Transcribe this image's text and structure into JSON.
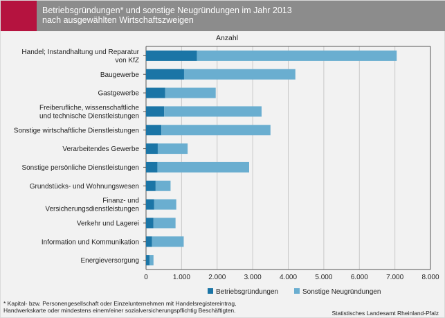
{
  "header": {
    "title": "Betriebsgründungen* und sonstige Neugründungen im Jahr 2013\nnach ausgewählten Wirtschaftszweigen",
    "accent_color": "#b5133f",
    "background_color": "#8c8c8c"
  },
  "chart_data": {
    "type": "bar",
    "orientation": "horizontal",
    "stacked": true,
    "title": "",
    "xlabel": "Anzahl",
    "ylabel": "",
    "xlim": [
      0,
      8000
    ],
    "x_ticks": [
      "0",
      "1.000",
      "2.000",
      "3.000",
      "4.000",
      "5.000",
      "6.000",
      "7.000",
      "8.000"
    ],
    "grid": true,
    "legend_position": "bottom",
    "categories": [
      [
        "Handel; Instandhaltung und Reparatur",
        "von KfZ"
      ],
      [
        "Baugewerbe"
      ],
      [
        "Gastgewerbe"
      ],
      [
        "Freiberufliche, wissenschaftliche",
        "und technische Dienstleistungen"
      ],
      [
        "Sonstige wirtschaftliche Dienstleistungen"
      ],
      [
        "Verarbeitendes Gewerbe"
      ],
      [
        "Sonstige persönliche Dienstleistungen"
      ],
      [
        "Grundstücks- und Wohnungswesen"
      ],
      [
        "Finanz- und",
        "Versicherungsdienstleistungen"
      ],
      [
        "Verkehr und Lagerei"
      ],
      [
        "Information und Kommunikation"
      ],
      [
        "Energieversorgung"
      ]
    ],
    "series": [
      {
        "name": "Betriebsgründungen",
        "color": "#1b75a6",
        "values": [
          1430,
          1070,
          540,
          510,
          430,
          330,
          320,
          270,
          230,
          210,
          170,
          100
        ]
      },
      {
        "name": "Sonstige Neugründungen",
        "color": "#6aaed0",
        "values": [
          5620,
          3130,
          1420,
          2740,
          3070,
          840,
          2580,
          420,
          620,
          620,
          890,
          110
        ]
      }
    ]
  },
  "footnote": "* Kapital- bzw. Personengesellschaft oder Einzelunternehmen mit  Handelsregistereintrag,\nHandwerkskarte oder mindestens einem/einer sozialversicherungspflichtig Beschäftigten.",
  "source": "Statistisches Landesamt Rheinland-Pfalz"
}
